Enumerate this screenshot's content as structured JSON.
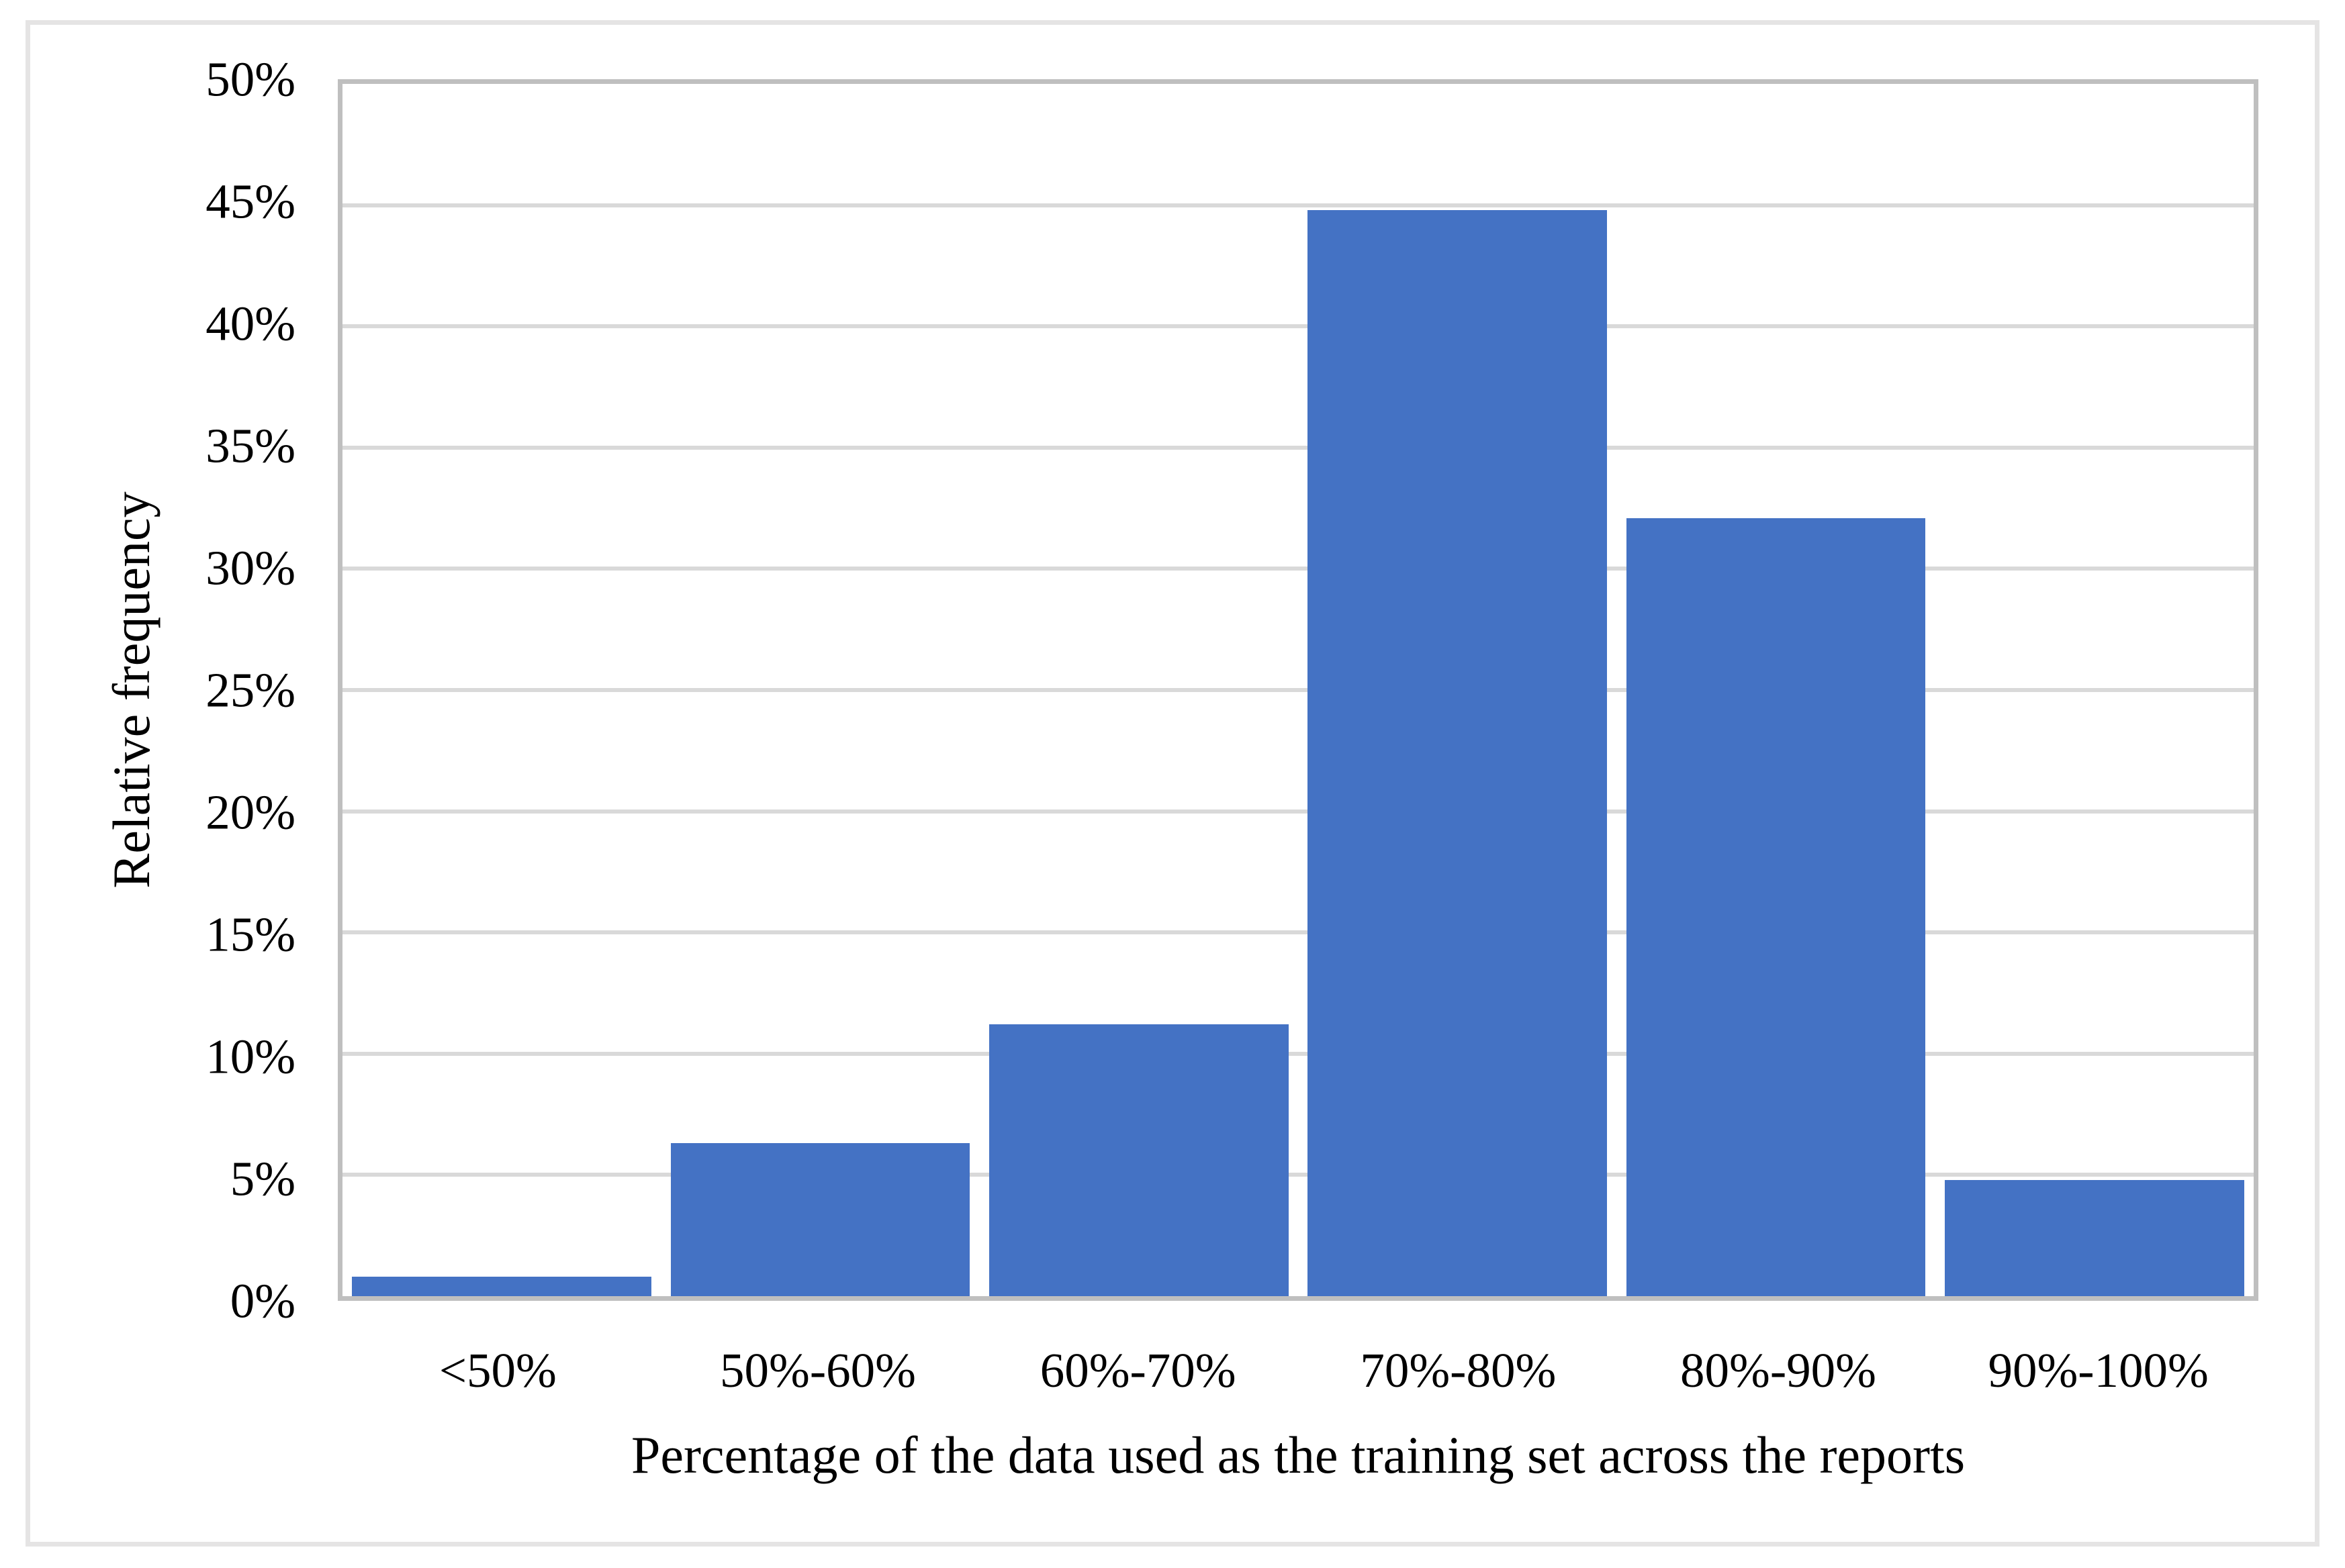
{
  "figure": {
    "background_color": "#ffffff",
    "outer_border_color": "#e5e4e4"
  },
  "chart_data": {
    "type": "bar",
    "title": "",
    "categories": [
      "<50%",
      "50%-60%",
      "60%-70%",
      "70%-80%",
      "80%-90%",
      "90%-100%"
    ],
    "values": [
      0.8,
      6.3,
      11.2,
      44.8,
      32.1,
      4.8
    ],
    "value_unit": "percent",
    "xlabel": "Percentage of the data used as the training set across the reports",
    "ylabel": "Relative frequency",
    "ylim": [
      0,
      50
    ],
    "ytick_step": 5,
    "ytick_labels": [
      "0%",
      "5%",
      "10%",
      "15%",
      "20%",
      "25%",
      "30%",
      "35%",
      "40%",
      "45%",
      "50%"
    ],
    "grid": "horizontal",
    "legend": "none",
    "bar_color": "#4472c4",
    "gridline_color": "#d9d9d9",
    "axis_line_color": "#bfbfbf"
  }
}
